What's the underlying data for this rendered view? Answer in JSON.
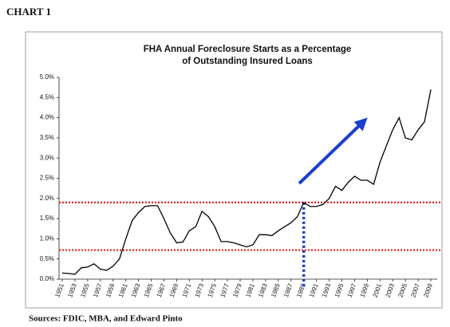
{
  "chart_data": {
    "type": "line",
    "label": "CHART 1",
    "title": [
      "FHA Annual Foreclosure Starts as a Percentage",
      "of Outstanding Insured Loans"
    ],
    "source": "Sources: FDIC, MBA, and Edward Pinto",
    "x": [
      1951,
      1952,
      1953,
      1954,
      1955,
      1956,
      1957,
      1958,
      1959,
      1960,
      1961,
      1962,
      1963,
      1964,
      1965,
      1966,
      1967,
      1968,
      1969,
      1970,
      1971,
      1972,
      1973,
      1974,
      1975,
      1976,
      1977,
      1978,
      1979,
      1980,
      1981,
      1982,
      1983,
      1984,
      1985,
      1986,
      1987,
      1988,
      1989,
      1990,
      1991,
      1992,
      1993,
      1994,
      1995,
      1996,
      1997,
      1998,
      1999,
      2000,
      2001,
      2002,
      2003,
      2004,
      2005,
      2006,
      2007,
      2008,
      2009
    ],
    "values": [
      0.15,
      0.14,
      0.12,
      0.28,
      0.3,
      0.38,
      0.25,
      0.22,
      0.32,
      0.5,
      1.0,
      1.45,
      1.65,
      1.8,
      1.82,
      1.82,
      1.5,
      1.15,
      0.9,
      0.92,
      1.2,
      1.3,
      1.68,
      1.55,
      1.3,
      0.93,
      0.93,
      0.9,
      0.85,
      0.8,
      0.85,
      1.1,
      1.1,
      1.08,
      1.2,
      1.3,
      1.4,
      1.55,
      1.9,
      1.8,
      1.8,
      1.85,
      2.0,
      2.3,
      2.2,
      2.4,
      2.55,
      2.45,
      2.45,
      2.35,
      2.9,
      3.3,
      3.7,
      4.0,
      3.5,
      3.45,
      3.7,
      3.9,
      4.7
    ],
    "color": "#000000",
    "xlim": [
      1951,
      2009
    ],
    "xticks": [
      1951,
      1953,
      1955,
      1957,
      1959,
      1961,
      1963,
      1965,
      1967,
      1969,
      1971,
      1973,
      1975,
      1977,
      1979,
      1981,
      1983,
      1985,
      1987,
      1989,
      1991,
      1993,
      1995,
      1997,
      1999,
      2001,
      2003,
      2005,
      2007,
      2009
    ],
    "ylim": [
      0,
      5
    ],
    "yticks": [
      {
        "value": 0,
        "label": "0.0%"
      },
      {
        "value": 0.5,
        "label": "0.5%"
      },
      {
        "value": 1,
        "label": "1.0%"
      },
      {
        "value": 1.5,
        "label": "1.5%"
      },
      {
        "value": 2,
        "label": "2.0%"
      },
      {
        "value": 2.5,
        "label": "2.5%"
      },
      {
        "value": 3,
        "label": "3.0%"
      },
      {
        "value": 3.5,
        "label": "3.5%"
      },
      {
        "value": 4,
        "label": "4.0%"
      },
      {
        "value": 4.5,
        "label": "4.5%"
      },
      {
        "value": 5,
        "label": "5.0%"
      }
    ],
    "hlines": [
      1.9,
      0.72
    ],
    "hline_color": "#e02020",
    "vline": 1989,
    "vline_color": "#1a3fd0"
  }
}
